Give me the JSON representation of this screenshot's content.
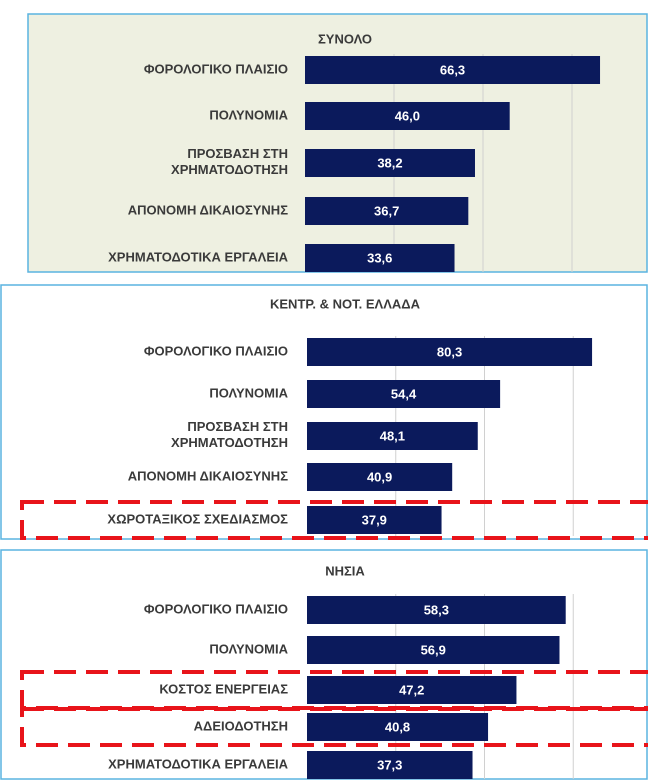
{
  "chart_data": [
    {
      "type": "barh",
      "title": "ΣΥΝΟΛΟ",
      "categories": [
        "ΦΟΡΟΛΟΓΙΚΟ ΠΛΑΙΣΙΟ",
        "ΠΟΛΥΝΟΜΙΑ",
        "ΠΡΟΣΒΑΣΗ ΣΤΗ\nΧΡΗΜΑΤΟΔΟΤΗΣΗ",
        "ΑΠΟΝΟΜΗ ΔΙΚΑΙΟΣΥΝΗΣ",
        "ΧΡΗΜΑΤΟΔΟΤΙΚΑ ΕΡΓΑΛΕΙΑ"
      ],
      "values": [
        66.3,
        46.0,
        38.2,
        36.7,
        33.6
      ],
      "value_labels": [
        "66,3",
        "46,0",
        "38,2",
        "36,7",
        "33,6"
      ],
      "color": "#0b1a5c",
      "background": "#eef0e1",
      "xlim": [
        0,
        80
      ],
      "xticks": [
        20,
        40,
        60
      ],
      "grid": true,
      "highlight": []
    },
    {
      "type": "barh",
      "title": "ΚΕΝΤΡ. & ΝΟΤ. ΕΛΛΑΔΑ",
      "categories": [
        "ΦΟΡΟΛΟΓΙΚΟ ΠΛΑΙΣΙΟ",
        "ΠΟΛΥΝΟΜΙΑ",
        "ΠΡΟΣΒΑΣΗ ΣΤΗ\nΧΡΗΜΑΤΟΔΟΤΗΣΗ",
        "ΑΠΟΝΟΜΗ ΔΙΚΑΙΟΣΥΝΗΣ",
        "ΧΩΡΟΤΑΞΙΚΟΣ ΣΧΕΔΙΑΣΜΟΣ"
      ],
      "values": [
        80.3,
        54.4,
        48.1,
        40.9,
        37.9
      ],
      "value_labels": [
        "80,3",
        "54,4",
        "48,1",
        "40,9",
        "37,9"
      ],
      "color": "#0b1a5c",
      "background": "#ffffff",
      "xlim": [
        0,
        100
      ],
      "xticks": [
        25,
        50,
        75
      ],
      "grid": true,
      "highlight": [
        4
      ]
    },
    {
      "type": "barh",
      "title": "ΝΗΣΙΑ",
      "categories": [
        "ΦΟΡΟΛΟΓΙΚΟ ΠΛΑΙΣΙΟ",
        "ΠΟΛΥΝΟΜΙΑ",
        "ΚΟΣΤΟΣ ΕΝΕΡΓΕΙΑΣ",
        "ΑΔΕΙΟΔΟΤΗΣΗ",
        "ΧΡΗΜΑΤΟΔΟΤΙΚΑ ΕΡΓΑΛΕΙΑ"
      ],
      "values": [
        58.3,
        56.9,
        47.2,
        40.8,
        37.3
      ],
      "value_labels": [
        "58,3",
        "56,9",
        "47,2",
        "40,8",
        "37,3"
      ],
      "color": "#0b1a5c",
      "background": "#ffffff",
      "xlim": [
        0,
        80
      ],
      "xticks": [
        20,
        40,
        60
      ],
      "grid": true,
      "highlight": [
        2,
        3
      ]
    }
  ]
}
